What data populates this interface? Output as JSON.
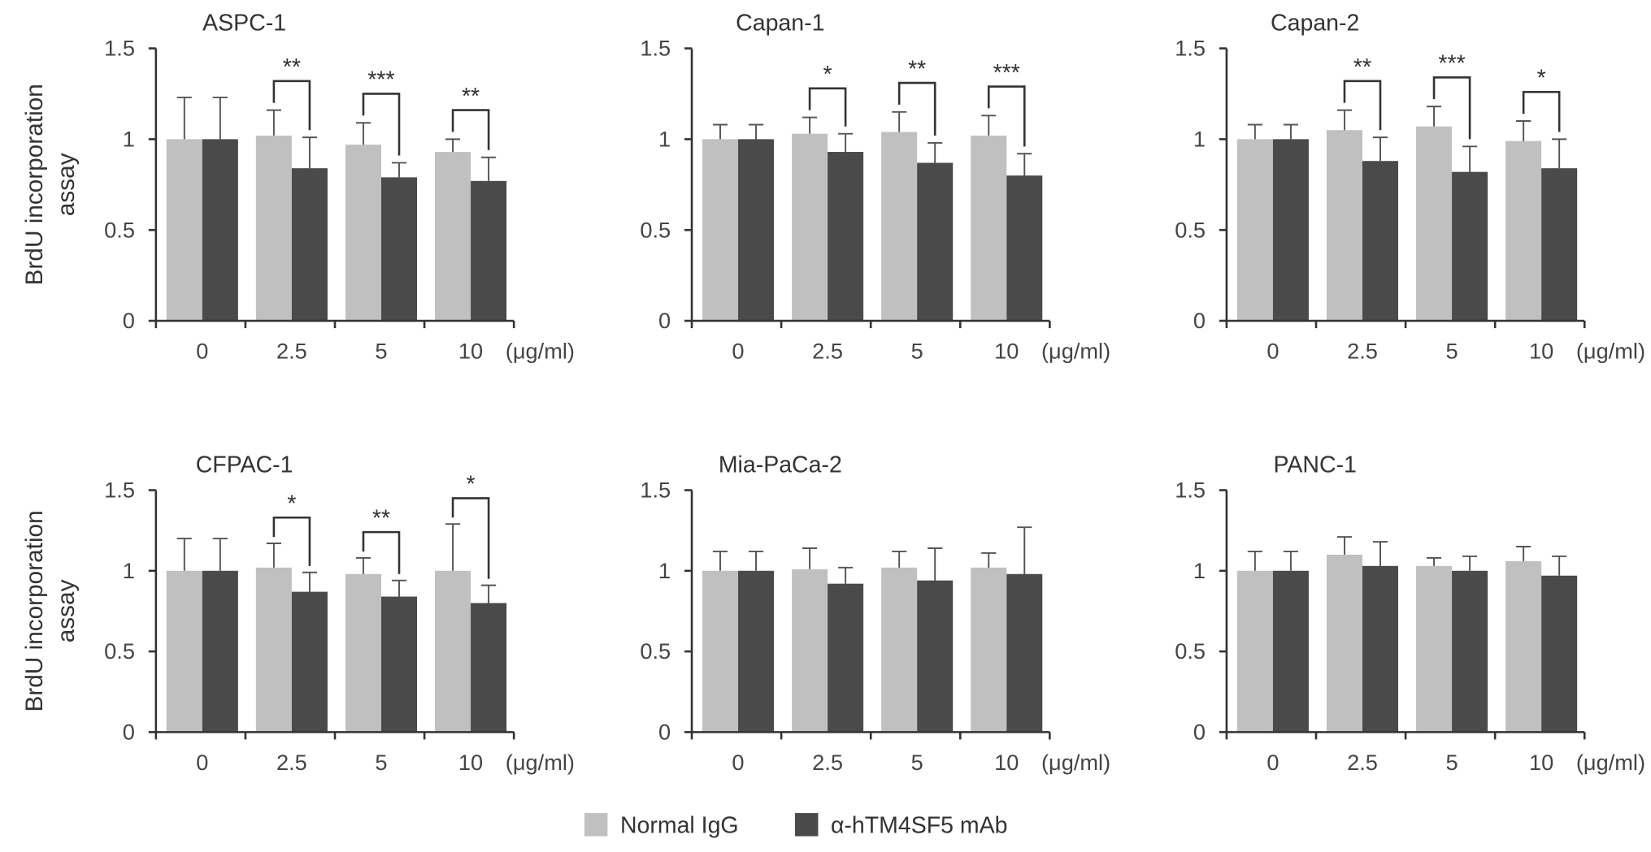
{
  "chart_data": [
    {
      "type": "bar",
      "title": "ASPC-1",
      "ylabel": "BrdU incorporation assay",
      "categories": [
        "0",
        "2.5",
        "5",
        "10"
      ],
      "unit": "(μg/ml)",
      "ylim": [
        0,
        1.5
      ],
      "yticks": [
        "0",
        "0.5",
        "1",
        "1.5"
      ],
      "series": [
        {
          "name": "Normal IgG",
          "values": [
            1.0,
            1.02,
            0.97,
            0.93
          ],
          "errors": [
            0.23,
            0.14,
            0.12,
            0.07
          ]
        },
        {
          "name": "α-hTM4SF5 mAb",
          "values": [
            1.0,
            0.84,
            0.79,
            0.77
          ],
          "errors": [
            0.23,
            0.17,
            0.08,
            0.13
          ]
        }
      ],
      "significance": [
        "",
        "**",
        "***",
        "**"
      ]
    },
    {
      "type": "bar",
      "title": "Capan-1",
      "categories": [
        "0",
        "2.5",
        "5",
        "10"
      ],
      "unit": "(μg/ml)",
      "ylim": [
        0,
        1.5
      ],
      "yticks": [
        "0",
        "0.5",
        "1",
        "1.5"
      ],
      "series": [
        {
          "name": "Normal IgG",
          "values": [
            1.0,
            1.03,
            1.04,
            1.02
          ],
          "errors": [
            0.08,
            0.09,
            0.11,
            0.11
          ]
        },
        {
          "name": "α-hTM4SF5 mAb",
          "values": [
            1.0,
            0.93,
            0.87,
            0.8
          ],
          "errors": [
            0.08,
            0.1,
            0.11,
            0.12
          ]
        }
      ],
      "significance": [
        "",
        "*",
        "**",
        "***"
      ]
    },
    {
      "type": "bar",
      "title": "Capan-2",
      "categories": [
        "0",
        "2.5",
        "5",
        "10"
      ],
      "unit": "(μg/ml)",
      "ylim": [
        0,
        1.5
      ],
      "yticks": [
        "0",
        "0.5",
        "1",
        "1.5"
      ],
      "series": [
        {
          "name": "Normal IgG",
          "values": [
            1.0,
            1.05,
            1.07,
            0.99
          ],
          "errors": [
            0.08,
            0.11,
            0.11,
            0.11
          ]
        },
        {
          "name": "α-hTM4SF5 mAb",
          "values": [
            1.0,
            0.88,
            0.82,
            0.84
          ],
          "errors": [
            0.08,
            0.13,
            0.14,
            0.16
          ]
        }
      ],
      "significance": [
        "",
        "**",
        "***",
        "*"
      ]
    },
    {
      "type": "bar",
      "title": "CFPAC-1",
      "ylabel": "BrdU incorporation assay",
      "categories": [
        "0",
        "2.5",
        "5",
        "10"
      ],
      "unit": "(μg/ml)",
      "ylim": [
        0,
        1.5
      ],
      "yticks": [
        "0",
        "0.5",
        "1",
        "1.5"
      ],
      "series": [
        {
          "name": "Normal IgG",
          "values": [
            1.0,
            1.02,
            0.98,
            1.0
          ],
          "errors": [
            0.2,
            0.15,
            0.1,
            0.29
          ]
        },
        {
          "name": "α-hTM4SF5 mAb",
          "values": [
            1.0,
            0.87,
            0.84,
            0.8
          ],
          "errors": [
            0.2,
            0.12,
            0.1,
            0.11
          ]
        }
      ],
      "significance": [
        "",
        "*",
        "**",
        "*"
      ]
    },
    {
      "type": "bar",
      "title": "Mia-PaCa-2",
      "categories": [
        "0",
        "2.5",
        "5",
        "10"
      ],
      "unit": "(μg/ml)",
      "ylim": [
        0,
        1.5
      ],
      "yticks": [
        "0",
        "0.5",
        "1",
        "1.5"
      ],
      "series": [
        {
          "name": "Normal IgG",
          "values": [
            1.0,
            1.01,
            1.02,
            1.02
          ],
          "errors": [
            0.12,
            0.13,
            0.1,
            0.09
          ]
        },
        {
          "name": "α-hTM4SF5 mAb",
          "values": [
            1.0,
            0.92,
            0.94,
            0.98
          ],
          "errors": [
            0.12,
            0.1,
            0.2,
            0.29
          ]
        }
      ],
      "significance": [
        "",
        "",
        "",
        ""
      ]
    },
    {
      "type": "bar",
      "title": "PANC-1",
      "categories": [
        "0",
        "2.5",
        "5",
        "10"
      ],
      "unit": "(μg/ml)",
      "ylim": [
        0,
        1.5
      ],
      "yticks": [
        "0",
        "0.5",
        "1",
        "1.5"
      ],
      "series": [
        {
          "name": "Normal IgG",
          "values": [
            1.0,
            1.1,
            1.03,
            1.06
          ],
          "errors": [
            0.12,
            0.11,
            0.05,
            0.09
          ]
        },
        {
          "name": "α-hTM4SF5 mAb",
          "values": [
            1.0,
            1.03,
            1.0,
            0.97
          ],
          "errors": [
            0.12,
            0.15,
            0.09,
            0.12
          ]
        }
      ],
      "significance": [
        "",
        "",
        "",
        ""
      ]
    }
  ],
  "ylabel_line1": "BrdU incorporation",
  "ylabel_line2": "assay",
  "legend": [
    {
      "label": "Normal IgG",
      "color": "#c0c0c0"
    },
    {
      "label": "α-hTM4SF5 mAb",
      "color": "#4a4a4a"
    }
  ],
  "colors": {
    "normal": "#c0c0c0",
    "mab": "#4a4a4a",
    "axis": "#333333",
    "error": "#555555"
  }
}
